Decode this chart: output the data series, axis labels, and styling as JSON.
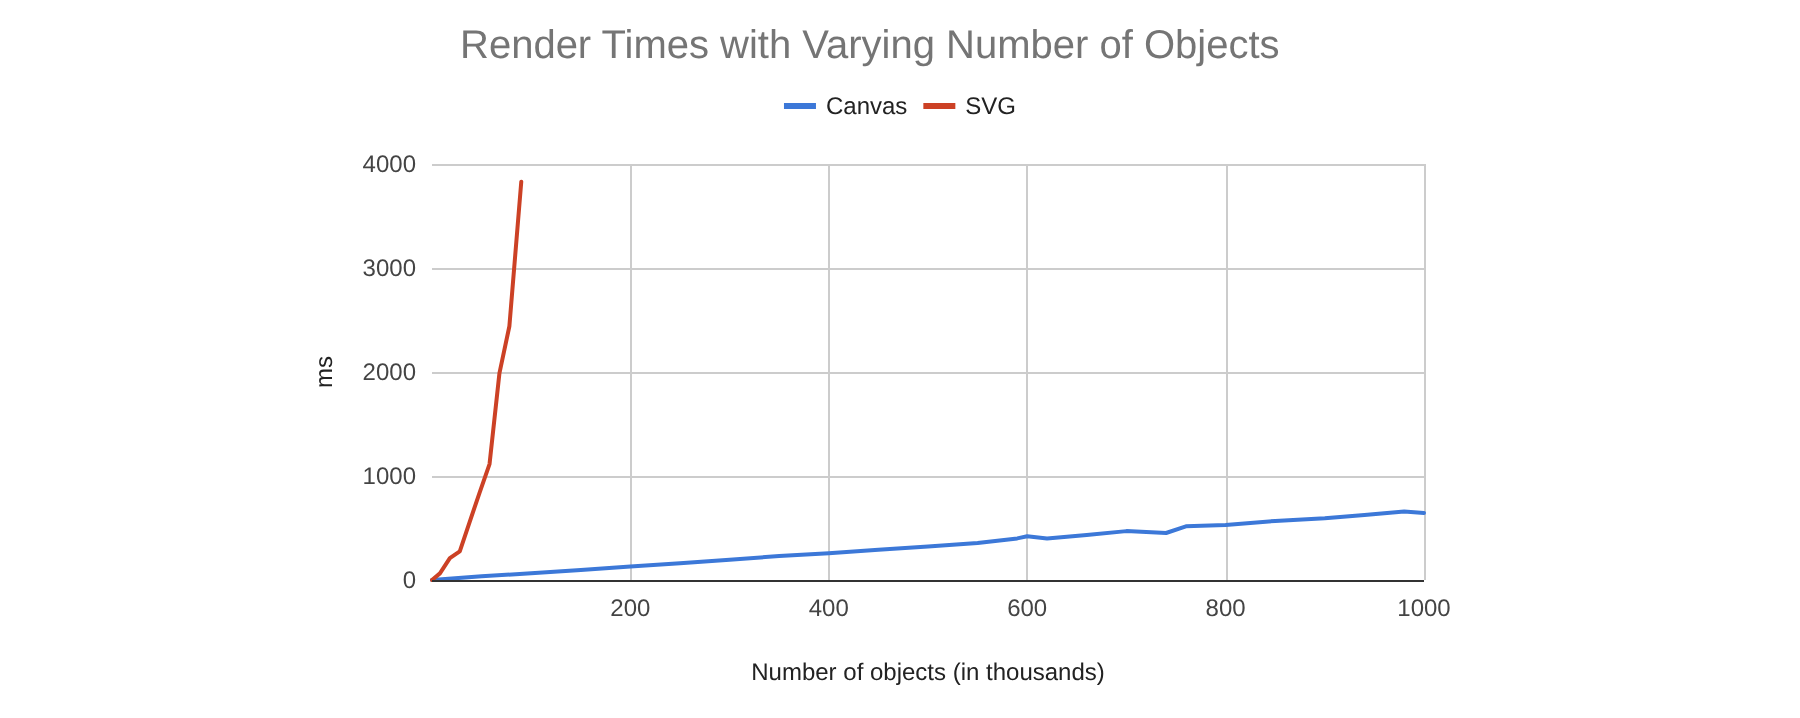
{
  "chart_data": {
    "type": "line",
    "title": "Render Times with Varying Number of Objects",
    "xlabel": "Number of objects (in thousands)",
    "ylabel": "ms",
    "xlim": [
      0,
      1000
    ],
    "xticks": [
      200,
      400,
      600,
      800,
      1000
    ],
    "ylim": [
      0,
      4000
    ],
    "yticks": [
      0,
      1000,
      2000,
      3000,
      4000
    ],
    "grid": true,
    "legend": "top",
    "marker": "none",
    "series": [
      {
        "name": "Canvas",
        "color": "#3c78d8",
        "x": [
          0,
          50,
          100,
          150,
          200,
          250,
          300,
          350,
          400,
          450,
          500,
          550,
          590,
          600,
          620,
          660,
          700,
          740,
          760,
          800,
          850,
          900,
          940,
          980,
          1000
        ],
        "values": [
          0,
          35,
          65,
          95,
          129,
          160,
          195,
          230,
          258,
          290,
          323,
          355,
          400,
          420,
          400,
          432,
          470,
          452,
          516,
          529,
          568,
          594,
          626,
          658,
          645
        ]
      },
      {
        "name": "SVG",
        "color": "#cc4125",
        "x": [
          0,
          8,
          18,
          28,
          38,
          48,
          58,
          68,
          78,
          90
        ],
        "values": [
          0,
          64,
          210,
          275,
          560,
          840,
          1115,
          1990,
          2440,
          3830
        ]
      }
    ]
  }
}
